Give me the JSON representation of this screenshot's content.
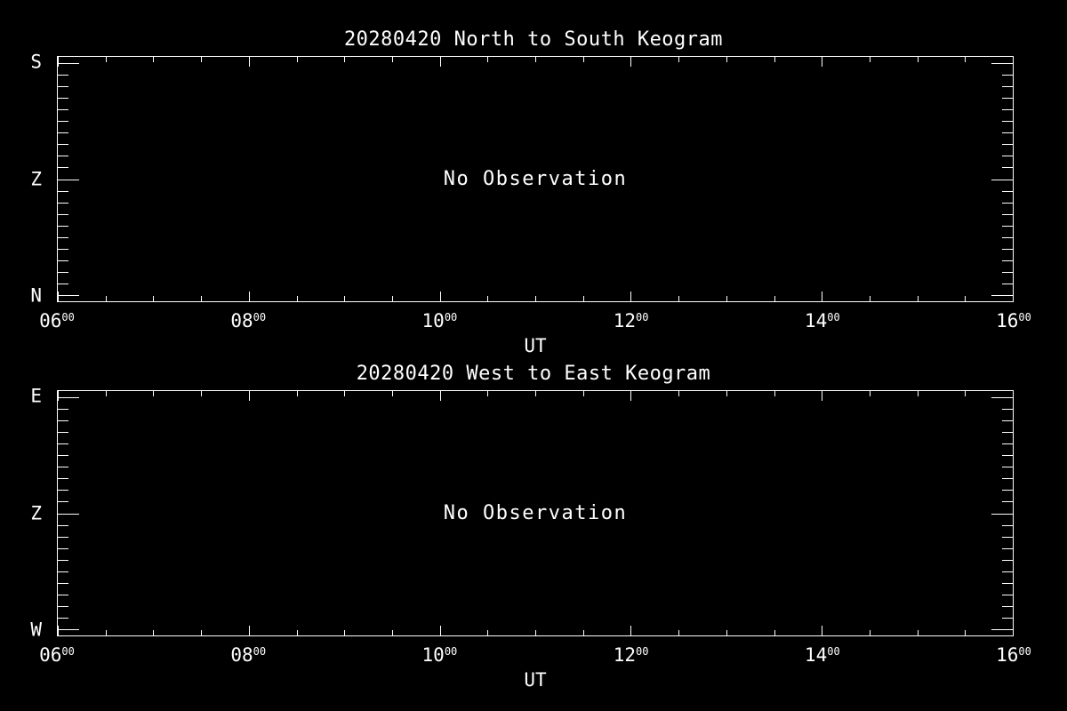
{
  "colors": {
    "background": "#000000",
    "foreground": "#ffffff"
  },
  "plots": [
    {
      "title": "20280420 North to South Keogram",
      "no_data_message": "No Observation",
      "x_axis": {
        "label": "UT",
        "tick_labels": [
          {
            "base": "06",
            "sup": "00"
          },
          {
            "base": "08",
            "sup": "00"
          },
          {
            "base": "10",
            "sup": "00"
          },
          {
            "base": "12",
            "sup": "00"
          },
          {
            "base": "14",
            "sup": "00"
          },
          {
            "base": "16",
            "sup": "00"
          }
        ]
      },
      "y_axis": {
        "tick_labels": [
          "S",
          "Z",
          "N"
        ]
      }
    },
    {
      "title": "20280420 West to East Keogram",
      "no_data_message": "No Observation",
      "x_axis": {
        "label": "UT",
        "tick_labels": [
          {
            "base": "06",
            "sup": "00"
          },
          {
            "base": "08",
            "sup": "00"
          },
          {
            "base": "10",
            "sup": "00"
          },
          {
            "base": "12",
            "sup": "00"
          },
          {
            "base": "14",
            "sup": "00"
          },
          {
            "base": "16",
            "sup": "00"
          }
        ]
      },
      "y_axis": {
        "tick_labels": [
          "E",
          "Z",
          "W"
        ]
      }
    }
  ],
  "chart_data": [
    {
      "type": "heatmap",
      "title": "20280420 North to South Keogram",
      "xlabel": "UT",
      "x_range_hours_ut": [
        6,
        16
      ],
      "x_ticks_major": [
        "06:00",
        "08:00",
        "10:00",
        "12:00",
        "14:00",
        "16:00"
      ],
      "x_minor_subdivisions_per_major": 4,
      "y_ticks_major": [
        "S",
        "Z",
        "N"
      ],
      "y_minor_subdivisions_per_major": 10,
      "values": [],
      "annotation": "No Observation",
      "grid": false,
      "legend": "none"
    },
    {
      "type": "heatmap",
      "title": "20280420 West to East Keogram",
      "xlabel": "UT",
      "x_range_hours_ut": [
        6,
        16
      ],
      "x_ticks_major": [
        "06:00",
        "08:00",
        "10:00",
        "12:00",
        "14:00",
        "16:00"
      ],
      "x_minor_subdivisions_per_major": 4,
      "y_ticks_major": [
        "E",
        "Z",
        "W"
      ],
      "y_minor_subdivisions_per_major": 10,
      "values": [],
      "annotation": "No Observation",
      "grid": false,
      "legend": "none"
    }
  ]
}
